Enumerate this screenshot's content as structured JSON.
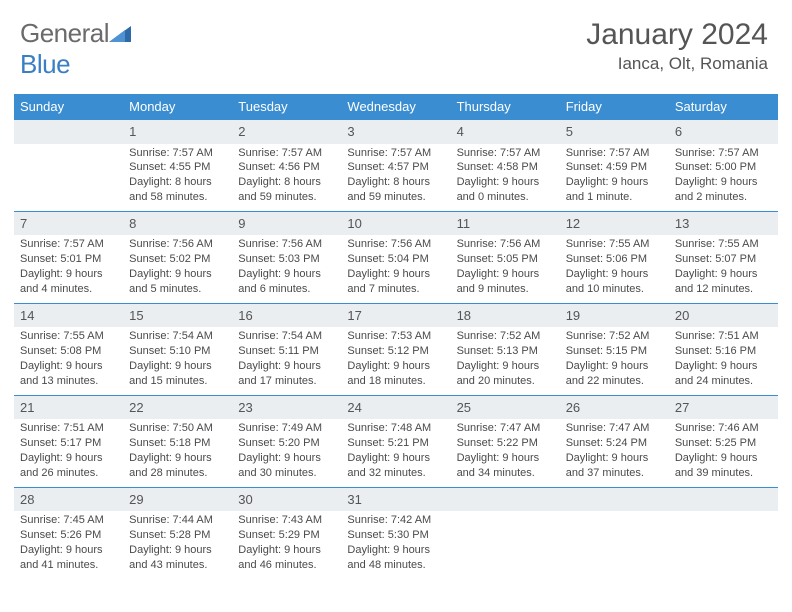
{
  "logo": {
    "word1": "General",
    "word2": "Blue"
  },
  "title": "January 2024",
  "location": "Ianca, Olt, Romania",
  "colors": {
    "header_bg": "#3a8dd0",
    "daynum_bg": "#eaeef1",
    "row_border": "#3a8dd0",
    "text": "#4a4a4a",
    "title_text": "#555555"
  },
  "weekdays": [
    "Sunday",
    "Monday",
    "Tuesday",
    "Wednesday",
    "Thursday",
    "Friday",
    "Saturday"
  ],
  "weeks": [
    {
      "nums": [
        "",
        "1",
        "2",
        "3",
        "4",
        "5",
        "6"
      ],
      "cells": [
        null,
        {
          "sr": "Sunrise: 7:57 AM",
          "ss": "Sunset: 4:55 PM",
          "d1": "Daylight: 8 hours",
          "d2": "and 58 minutes."
        },
        {
          "sr": "Sunrise: 7:57 AM",
          "ss": "Sunset: 4:56 PM",
          "d1": "Daylight: 8 hours",
          "d2": "and 59 minutes."
        },
        {
          "sr": "Sunrise: 7:57 AM",
          "ss": "Sunset: 4:57 PM",
          "d1": "Daylight: 8 hours",
          "d2": "and 59 minutes."
        },
        {
          "sr": "Sunrise: 7:57 AM",
          "ss": "Sunset: 4:58 PM",
          "d1": "Daylight: 9 hours",
          "d2": "and 0 minutes."
        },
        {
          "sr": "Sunrise: 7:57 AM",
          "ss": "Sunset: 4:59 PM",
          "d1": "Daylight: 9 hours",
          "d2": "and 1 minute."
        },
        {
          "sr": "Sunrise: 7:57 AM",
          "ss": "Sunset: 5:00 PM",
          "d1": "Daylight: 9 hours",
          "d2": "and 2 minutes."
        }
      ]
    },
    {
      "nums": [
        "7",
        "8",
        "9",
        "10",
        "11",
        "12",
        "13"
      ],
      "cells": [
        {
          "sr": "Sunrise: 7:57 AM",
          "ss": "Sunset: 5:01 PM",
          "d1": "Daylight: 9 hours",
          "d2": "and 4 minutes."
        },
        {
          "sr": "Sunrise: 7:56 AM",
          "ss": "Sunset: 5:02 PM",
          "d1": "Daylight: 9 hours",
          "d2": "and 5 minutes."
        },
        {
          "sr": "Sunrise: 7:56 AM",
          "ss": "Sunset: 5:03 PM",
          "d1": "Daylight: 9 hours",
          "d2": "and 6 minutes."
        },
        {
          "sr": "Sunrise: 7:56 AM",
          "ss": "Sunset: 5:04 PM",
          "d1": "Daylight: 9 hours",
          "d2": "and 7 minutes."
        },
        {
          "sr": "Sunrise: 7:56 AM",
          "ss": "Sunset: 5:05 PM",
          "d1": "Daylight: 9 hours",
          "d2": "and 9 minutes."
        },
        {
          "sr": "Sunrise: 7:55 AM",
          "ss": "Sunset: 5:06 PM",
          "d1": "Daylight: 9 hours",
          "d2": "and 10 minutes."
        },
        {
          "sr": "Sunrise: 7:55 AM",
          "ss": "Sunset: 5:07 PM",
          "d1": "Daylight: 9 hours",
          "d2": "and 12 minutes."
        }
      ]
    },
    {
      "nums": [
        "14",
        "15",
        "16",
        "17",
        "18",
        "19",
        "20"
      ],
      "cells": [
        {
          "sr": "Sunrise: 7:55 AM",
          "ss": "Sunset: 5:08 PM",
          "d1": "Daylight: 9 hours",
          "d2": "and 13 minutes."
        },
        {
          "sr": "Sunrise: 7:54 AM",
          "ss": "Sunset: 5:10 PM",
          "d1": "Daylight: 9 hours",
          "d2": "and 15 minutes."
        },
        {
          "sr": "Sunrise: 7:54 AM",
          "ss": "Sunset: 5:11 PM",
          "d1": "Daylight: 9 hours",
          "d2": "and 17 minutes."
        },
        {
          "sr": "Sunrise: 7:53 AM",
          "ss": "Sunset: 5:12 PM",
          "d1": "Daylight: 9 hours",
          "d2": "and 18 minutes."
        },
        {
          "sr": "Sunrise: 7:52 AM",
          "ss": "Sunset: 5:13 PM",
          "d1": "Daylight: 9 hours",
          "d2": "and 20 minutes."
        },
        {
          "sr": "Sunrise: 7:52 AM",
          "ss": "Sunset: 5:15 PM",
          "d1": "Daylight: 9 hours",
          "d2": "and 22 minutes."
        },
        {
          "sr": "Sunrise: 7:51 AM",
          "ss": "Sunset: 5:16 PM",
          "d1": "Daylight: 9 hours",
          "d2": "and 24 minutes."
        }
      ]
    },
    {
      "nums": [
        "21",
        "22",
        "23",
        "24",
        "25",
        "26",
        "27"
      ],
      "cells": [
        {
          "sr": "Sunrise: 7:51 AM",
          "ss": "Sunset: 5:17 PM",
          "d1": "Daylight: 9 hours",
          "d2": "and 26 minutes."
        },
        {
          "sr": "Sunrise: 7:50 AM",
          "ss": "Sunset: 5:18 PM",
          "d1": "Daylight: 9 hours",
          "d2": "and 28 minutes."
        },
        {
          "sr": "Sunrise: 7:49 AM",
          "ss": "Sunset: 5:20 PM",
          "d1": "Daylight: 9 hours",
          "d2": "and 30 minutes."
        },
        {
          "sr": "Sunrise: 7:48 AM",
          "ss": "Sunset: 5:21 PM",
          "d1": "Daylight: 9 hours",
          "d2": "and 32 minutes."
        },
        {
          "sr": "Sunrise: 7:47 AM",
          "ss": "Sunset: 5:22 PM",
          "d1": "Daylight: 9 hours",
          "d2": "and 34 minutes."
        },
        {
          "sr": "Sunrise: 7:47 AM",
          "ss": "Sunset: 5:24 PM",
          "d1": "Daylight: 9 hours",
          "d2": "and 37 minutes."
        },
        {
          "sr": "Sunrise: 7:46 AM",
          "ss": "Sunset: 5:25 PM",
          "d1": "Daylight: 9 hours",
          "d2": "and 39 minutes."
        }
      ]
    },
    {
      "nums": [
        "28",
        "29",
        "30",
        "31",
        "",
        "",
        ""
      ],
      "cells": [
        {
          "sr": "Sunrise: 7:45 AM",
          "ss": "Sunset: 5:26 PM",
          "d1": "Daylight: 9 hours",
          "d2": "and 41 minutes."
        },
        {
          "sr": "Sunrise: 7:44 AM",
          "ss": "Sunset: 5:28 PM",
          "d1": "Daylight: 9 hours",
          "d2": "and 43 minutes."
        },
        {
          "sr": "Sunrise: 7:43 AM",
          "ss": "Sunset: 5:29 PM",
          "d1": "Daylight: 9 hours",
          "d2": "and 46 minutes."
        },
        {
          "sr": "Sunrise: 7:42 AM",
          "ss": "Sunset: 5:30 PM",
          "d1": "Daylight: 9 hours",
          "d2": "and 48 minutes."
        },
        null,
        null,
        null
      ]
    }
  ]
}
